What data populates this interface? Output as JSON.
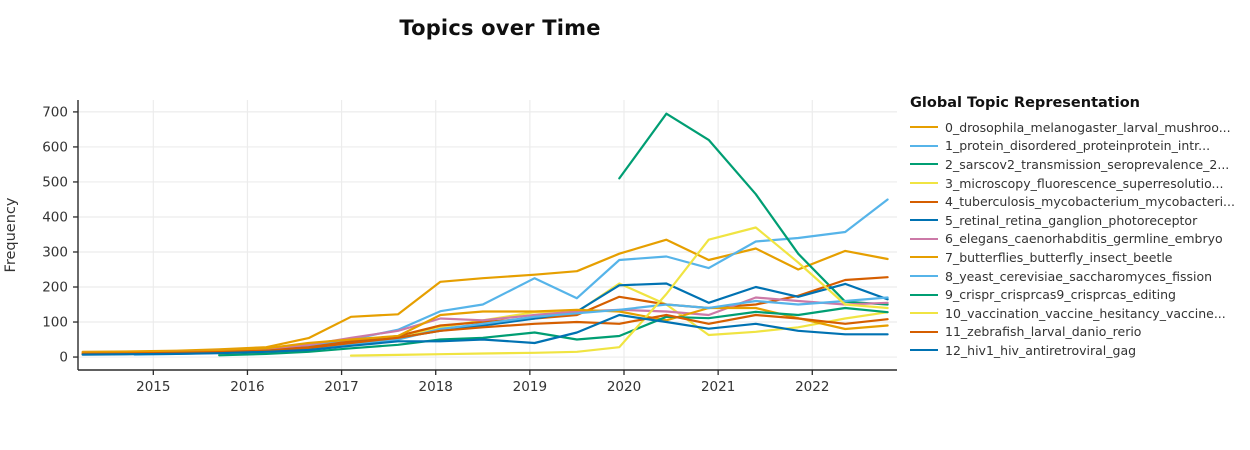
{
  "title": "Topics over Time",
  "ylabel": "Frequency",
  "legend": {
    "title": "Global Topic Representation",
    "items": [
      {
        "label": "0_drosophila_melanogaster_larval_mushroo...",
        "color": "#E69F00"
      },
      {
        "label": "1_protein_disordered_proteinprotein_intr...",
        "color": "#56B4E9"
      },
      {
        "label": "2_sarscov2_transmission_seroprevalence_2...",
        "color": "#009E73"
      },
      {
        "label": "3_microscopy_fluorescence_superresolutio...",
        "color": "#F0E442"
      },
      {
        "label": "4_tuberculosis_mycobacterium_mycobacteri...",
        "color": "#D55E00"
      },
      {
        "label": "5_retinal_retina_ganglion_photoreceptor",
        "color": "#0072B2"
      },
      {
        "label": "6_elegans_caenorhabditis_germline_embryo",
        "color": "#CC79A7"
      },
      {
        "label": "7_butterflies_butterfly_insect_beetle",
        "color": "#E69F00"
      },
      {
        "label": "8_yeast_cerevisiae_saccharomyces_fission",
        "color": "#56B4E9"
      },
      {
        "label": "9_crispr_crisprcas9_crisprcas_editing",
        "color": "#009E73"
      },
      {
        "label": "10_vaccination_vaccine_hesitancy_vaccine...",
        "color": "#F0E442"
      },
      {
        "label": "11_zebrafish_larval_danio_rerio",
        "color": "#D55E00"
      },
      {
        "label": "12_hiv1_hiv_antiretroviral_gag",
        "color": "#0072B2"
      }
    ]
  },
  "chart_data": {
    "type": "line",
    "title": "Topics over Time",
    "xlabel": "",
    "ylabel": "Frequency",
    "legend_title": "Global Topic Representation",
    "legend_position": "right",
    "grid": true,
    "xlim": [
      2014.2,
      2022.9
    ],
    "ylim": [
      -37,
      734
    ],
    "xticks": [
      2015,
      2016,
      2017,
      2018,
      2019,
      2020,
      2021,
      2022
    ],
    "yticks": [
      0,
      100,
      200,
      300,
      400,
      500,
      600,
      700
    ],
    "x": [
      2014.25,
      2014.8,
      2015.25,
      2015.7,
      2016.2,
      2016.65,
      2017.1,
      2017.6,
      2018.05,
      2018.5,
      2019.05,
      2019.5,
      2019.95,
      2020.45,
      2020.9,
      2021.4,
      2021.85,
      2022.35,
      2022.8
    ],
    "series": [
      {
        "name": "0_drosophila_melanogaster_larval_mushroo...",
        "color": "#E69F00",
        "values": [
          15,
          16,
          18,
          22,
          28,
          54,
          115,
          122,
          215,
          225,
          235,
          245,
          295,
          335,
          277,
          310,
          250,
          303,
          280
        ]
      },
      {
        "name": "1_protein_disordered_proteinprotein_intr...",
        "color": "#56B4E9",
        "values": [
          8,
          10,
          12,
          15,
          22,
          32,
          50,
          78,
          131,
          150,
          225,
          168,
          277,
          287,
          254,
          330,
          340,
          357,
          450
        ]
      },
      {
        "name": "2_sarscov2_transmission_seroprevalence_2...",
        "color": "#009E73",
        "values": [
          null,
          null,
          null,
          null,
          null,
          null,
          null,
          null,
          null,
          null,
          null,
          null,
          510,
          695,
          620,
          465,
          295,
          158,
          150
        ]
      },
      {
        "name": "3_microscopy_fluorescence_superresolutio...",
        "color": "#F0E442",
        "values": [
          null,
          null,
          null,
          8,
          12,
          20,
          38,
          55,
          85,
          105,
          128,
          128,
          210,
          150,
          63,
          72,
          85,
          110,
          128
        ]
      },
      {
        "name": "4_tuberculosis_mycobacterium_mycobacteri...",
        "color": "#D55E00",
        "values": [
          10,
          11,
          13,
          15,
          20,
          28,
          45,
          60,
          90,
          100,
          110,
          120,
          172,
          150,
          140,
          150,
          175,
          220,
          228
        ]
      },
      {
        "name": "5_retinal_retina_ganglion_photoreceptor",
        "color": "#0072B2",
        "values": [
          8,
          9,
          11,
          14,
          18,
          25,
          40,
          55,
          75,
          90,
          110,
          130,
          205,
          210,
          155,
          200,
          172,
          209,
          165
        ]
      },
      {
        "name": "6_elegans_caenorhabditis_germline_embryo",
        "color": "#CC79A7",
        "values": [
          12,
          13,
          15,
          18,
          24,
          35,
          55,
          75,
          110,
          105,
          120,
          130,
          135,
          130,
          120,
          170,
          160,
          150,
          155
        ]
      },
      {
        "name": "7_butterflies_butterfly_insect_beetle",
        "color": "#E69F00",
        "values": [
          12,
          14,
          15,
          18,
          25,
          40,
          50,
          60,
          120,
          130,
          130,
          135,
          130,
          105,
          140,
          140,
          111,
          80,
          90
        ]
      },
      {
        "name": "8_yeast_cerevisiae_saccharomyces_fission",
        "color": "#56B4E9",
        "values": [
          null,
          7,
          9,
          12,
          16,
          22,
          35,
          50,
          80,
          95,
          115,
          125,
          135,
          150,
          140,
          160,
          150,
          160,
          170
        ]
      },
      {
        "name": "9_crispr_crisprcas9_crisprcas_editing",
        "color": "#009E73",
        "values": [
          null,
          null,
          null,
          5,
          9,
          15,
          25,
          35,
          50,
          55,
          70,
          50,
          60,
          115,
          111,
          129,
          120,
          140,
          128
        ]
      },
      {
        "name": "10_vaccination_vaccine_hesitancy_vaccine...",
        "color": "#F0E442",
        "values": [
          null,
          null,
          null,
          null,
          null,
          null,
          4,
          6,
          8,
          10,
          12,
          15,
          28,
          180,
          335,
          370,
          270,
          150,
          140
        ]
      },
      {
        "name": "11_zebrafish_larval_danio_rerio",
        "color": "#D55E00",
        "values": [
          9,
          10,
          12,
          14,
          18,
          26,
          40,
          55,
          75,
          85,
          95,
          100,
          95,
          120,
          95,
          120,
          110,
          95,
          108
        ]
      },
      {
        "name": "12_hiv1_hiv_antiretroviral_gag",
        "color": "#0072B2",
        "values": [
          7,
          8,
          9,
          11,
          15,
          20,
          32,
          45,
          45,
          50,
          40,
          70,
          120,
          100,
          81,
          95,
          75,
          65,
          65
        ]
      }
    ]
  }
}
